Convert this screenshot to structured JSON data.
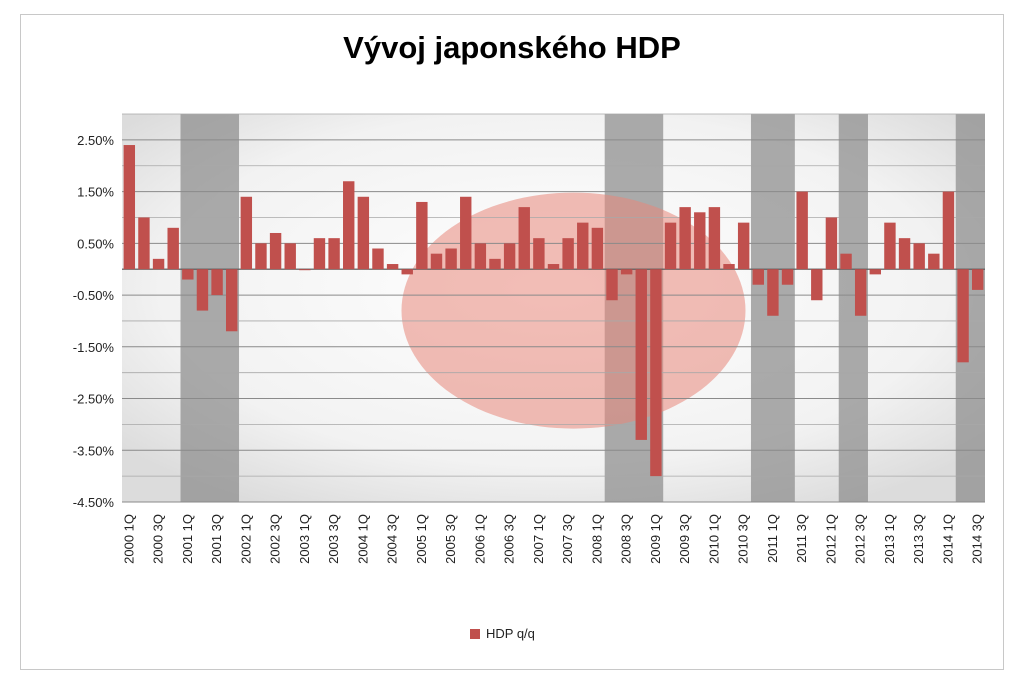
{
  "chart_data": {
    "type": "bar",
    "title": "Vývoj japonského HDP",
    "xlabel": "",
    "ylabel": "",
    "ylim": [
      -4.5,
      3.0
    ],
    "yticks": [
      "2.50%",
      "1.50%",
      "0.50%",
      "-0.50%",
      "-1.50%",
      "-2.50%",
      "-3.50%",
      "-4.50%"
    ],
    "ytick_values": [
      2.5,
      1.5,
      0.5,
      -0.5,
      -1.5,
      -2.5,
      -3.5,
      -4.5
    ],
    "grid": true,
    "legend": "bottom",
    "series": [
      {
        "name": "HDP q/q",
        "color": "#c0504d",
        "values": [
          2.4,
          1.0,
          0.2,
          0.8,
          -0.2,
          -0.8,
          -0.5,
          -1.2,
          1.4,
          0.5,
          0.7,
          0.5,
          0.0,
          0.6,
          0.6,
          1.7,
          1.4,
          0.4,
          0.1,
          -0.1,
          1.3,
          0.3,
          0.4,
          1.4,
          0.5,
          0.2,
          0.5,
          1.2,
          0.6,
          0.1,
          0.6,
          0.9,
          0.8,
          -0.6,
          -0.1,
          -3.3,
          -4.0,
          0.9,
          1.2,
          1.1,
          1.2,
          0.1,
          0.9,
          -0.3,
          -0.9,
          -0.3,
          1.5,
          -0.6,
          1.0,
          0.3,
          -0.9,
          -0.1,
          0.9,
          0.6,
          0.5,
          0.3,
          1.5,
          -1.8,
          -0.4
        ]
      }
    ],
    "categories": [
      "2000 1Q",
      "2000 2Q",
      "2000 3Q",
      "2000 4Q",
      "2001 1Q",
      "2001 2Q",
      "2001 3Q",
      "2001 4Q",
      "2002 1Q",
      "2002 2Q",
      "2002 3Q",
      "2002 4Q",
      "2003 1Q",
      "2003 2Q",
      "2003 3Q",
      "2003 4Q",
      "2004 1Q",
      "2004 2Q",
      "2004 3Q",
      "2004 4Q",
      "2005 1Q",
      "2005 2Q",
      "2005 3Q",
      "2005 4Q",
      "2006 1Q",
      "2006 2Q",
      "2006 3Q",
      "2006 4Q",
      "2007 1Q",
      "2007 2Q",
      "2007 3Q",
      "2007 4Q",
      "2008 1Q",
      "2008 2Q",
      "2008 3Q",
      "2008 4Q",
      "2009 1Q",
      "2009 2Q",
      "2009 3Q",
      "2009 4Q",
      "2010 1Q",
      "2010 2Q",
      "2010 3Q",
      "2010 4Q",
      "2011 1Q",
      "2011 2Q",
      "2011 3Q",
      "2011 4Q",
      "2012 1Q",
      "2012 2Q",
      "2012 3Q",
      "2012 4Q",
      "2013 1Q",
      "2013 2Q",
      "2013 3Q",
      "2013 4Q",
      "2014 1Q",
      "2014 2Q",
      "2014 3Q"
    ],
    "tick_labels": [
      "2000 1Q",
      "2000 3Q",
      "2001 1Q",
      "2001 3Q",
      "2002 1Q",
      "2002 3Q",
      "2003 1Q",
      "2003 3Q",
      "2004 1Q",
      "2004 3Q",
      "2005 1Q",
      "2005 3Q",
      "2006 1Q",
      "2006 3Q",
      "2007 1Q",
      "2007 3Q",
      "2008 1Q",
      "2008 3Q",
      "2009 1Q",
      "2009 3Q",
      "2010 1Q",
      "2010 3Q",
      "2011 1Q",
      "2011 3Q",
      "2012 1Q",
      "2012 3Q",
      "2013 1Q",
      "2013 3Q",
      "2014 1Q",
      "2014 3Q"
    ],
    "recession_shading": [
      {
        "from": "2001 1Q",
        "to": "2001 4Q"
      },
      {
        "from": "2008 2Q",
        "to": "2009 1Q"
      },
      {
        "from": "2010 4Q",
        "to": "2011 2Q"
      },
      {
        "from": "2012 2Q",
        "to": "2012 3Q"
      },
      {
        "from": "2014 2Q",
        "to": "2014 3Q"
      }
    ],
    "shade_color": "#8c8c8c",
    "background_motif_color": "#e8867a"
  }
}
